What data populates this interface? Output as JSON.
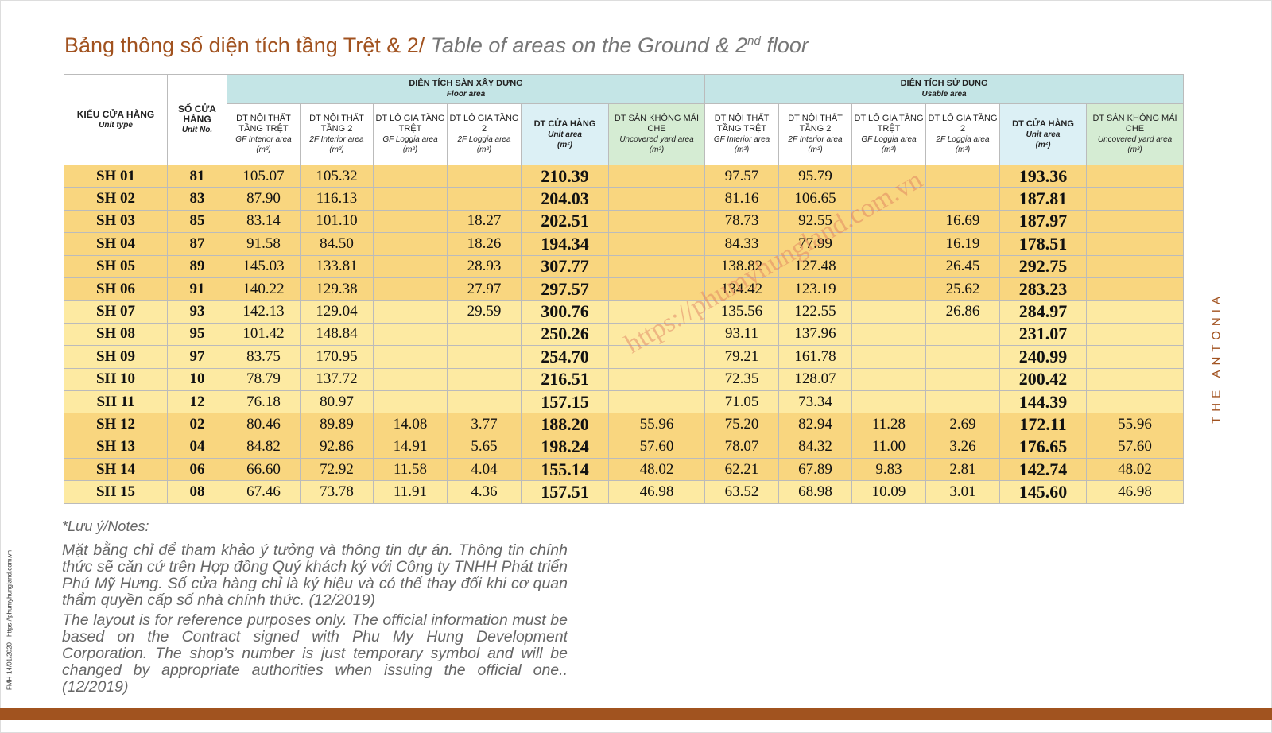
{
  "header": {
    "title_vi": "Bảng thông số diện tích tầng Trệt & 2/",
    "title_en": "Table of areas on the Ground & 2",
    "title_sup": "nd",
    "title_end": "floor"
  },
  "side_text": "THE ANTONIA",
  "footer_code": "FMH-14/01/2020 - https://phumyhungland.com.vn",
  "watermark": "https://phumyhungland.com.vn",
  "table": {
    "unit_type_header": {
      "vi": "KIỂU CỬA HÀNG",
      "en": "Unit type"
    },
    "unit_no_header": {
      "vi": "SỐ CỬA HÀNG",
      "en": "Unit No."
    },
    "groups": [
      {
        "vi": "DIỆN TÍCH SÀN XÂY DỰNG",
        "en": "Floor area"
      },
      {
        "vi": "DIỆN TÍCH SỬ DỤNG",
        "en": "Usable area"
      }
    ],
    "columns": [
      {
        "vi": "DT NỘI THẤT TẦNG TRỆT",
        "en": "GF Interior area",
        "unit": "(m²)"
      },
      {
        "vi": "DT NỘI THẤT TẦNG 2",
        "en": "2F Interior area",
        "unit": "(m²)"
      },
      {
        "vi": "DT LÔ GIA TẦNG TRỆT",
        "en": "GF Loggia area",
        "unit": "(m²)"
      },
      {
        "vi": "DT LÔ GIA TẦNG 2",
        "en": "2F Loggia area",
        "unit": "(m²)"
      },
      {
        "vi": "DT CỬA HÀNG",
        "en": "Unit area",
        "unit": "(m²)"
      },
      {
        "vi": "DT SÂN KHÔNG MÁI CHE",
        "en": "Uncovered yard area",
        "unit": "(m²)"
      },
      {
        "vi": "DT NỘI THẤT TẦNG TRỆT",
        "en": "GF Interior area",
        "unit": "(m²)"
      },
      {
        "vi": "DT NỘI THẤT TẦNG 2",
        "en": "2F Interior area",
        "unit": "(m²)"
      },
      {
        "vi": "DT LÔ GIA TẦNG TRỆT",
        "en": "GF Loggia area",
        "unit": "(m²)"
      },
      {
        "vi": "DT LÔ GIA TẦNG 2",
        "en": "2F Loggia area",
        "unit": "(m²)"
      },
      {
        "vi": "DT CỬA HÀNG",
        "en": "Unit area",
        "unit": "(m²)"
      },
      {
        "vi": "DT SÂN KHÔNG MÁI CHE",
        "en": "Uncovered yard area",
        "unit": "(m²)"
      }
    ],
    "rows": [
      [
        "SH 01",
        "81",
        "105.07",
        "105.32",
        null,
        null,
        "210.39",
        null,
        "97.57",
        "95.79",
        null,
        null,
        "193.36",
        null
      ],
      [
        "SH 02",
        "83",
        "87.90",
        "116.13",
        null,
        null,
        "204.03",
        null,
        "81.16",
        "106.65",
        null,
        null,
        "187.81",
        null
      ],
      [
        "SH 03",
        "85",
        "83.14",
        "101.10",
        null,
        "18.27",
        "202.51",
        null,
        "78.73",
        "92.55",
        null,
        "16.69",
        "187.97",
        null
      ],
      [
        "SH 04",
        "87",
        "91.58",
        "84.50",
        null,
        "18.26",
        "194.34",
        null,
        "84.33",
        "77.99",
        null,
        "16.19",
        "178.51",
        null
      ],
      [
        "SH 05",
        "89",
        "145.03",
        "133.81",
        null,
        "28.93",
        "307.77",
        null,
        "138.82",
        "127.48",
        null,
        "26.45",
        "292.75",
        null
      ],
      [
        "SH 06",
        "91",
        "140.22",
        "129.38",
        null,
        "27.97",
        "297.57",
        null,
        "134.42",
        "123.19",
        null,
        "25.62",
        "283.23",
        null
      ],
      [
        "SH 07",
        "93",
        "142.13",
        "129.04",
        null,
        "29.59",
        "300.76",
        null,
        "135.56",
        "122.55",
        null,
        "26.86",
        "284.97",
        null
      ],
      [
        "SH 08",
        "95",
        "101.42",
        "148.84",
        null,
        null,
        "250.26",
        null,
        "93.11",
        "137.96",
        null,
        null,
        "231.07",
        null
      ],
      [
        "SH 09",
        "97",
        "83.75",
        "170.95",
        null,
        null,
        "254.70",
        null,
        "79.21",
        "161.78",
        null,
        null,
        "240.99",
        null
      ],
      [
        "SH 10",
        "10",
        "78.79",
        "137.72",
        null,
        null,
        "216.51",
        null,
        "72.35",
        "128.07",
        null,
        null,
        "200.42",
        null
      ],
      [
        "SH 11",
        "12",
        "76.18",
        "80.97",
        null,
        null,
        "157.15",
        null,
        "71.05",
        "73.34",
        null,
        null,
        "144.39",
        null
      ],
      [
        "SH 12",
        "02",
        "80.46",
        "89.89",
        "14.08",
        "3.77",
        "188.20",
        "55.96",
        "75.20",
        "82.94",
        "11.28",
        "2.69",
        "172.11",
        "55.96"
      ],
      [
        "SH 13",
        "04",
        "84.82",
        "92.86",
        "14.91",
        "5.65",
        "198.24",
        "57.60",
        "78.07",
        "84.32",
        "11.00",
        "3.26",
        "176.65",
        "57.60"
      ],
      [
        "SH 14",
        "06",
        "66.60",
        "72.92",
        "11.58",
        "4.04",
        "155.14",
        "48.02",
        "62.21",
        "67.89",
        "9.83",
        "2.81",
        "142.74",
        "48.02"
      ],
      [
        "SH 15",
        "08",
        "67.46",
        "73.78",
        "11.91",
        "4.36",
        "157.51",
        "46.98",
        "63.52",
        "68.98",
        "10.09",
        "3.01",
        "145.60",
        "46.98"
      ]
    ]
  },
  "notes": {
    "title": "*Lưu ý/Notes:",
    "vi": "Mặt bằng chỉ để tham khảo ý tưởng và thông tin dự án. Thông tin chính thức sẽ căn cứ trên Hợp đồng Quý khách ký với Công ty TNHH Phát triển Phú Mỹ Hưng. Số cửa hàng chỉ là ký hiệu và có thể thay đổi khi cơ quan thẩm quyền cấp số nhà chính thức. (12/2019)",
    "en": "The layout is for reference purposes only. The official information must be based on the Contract signed with Phu My Hung Development Corporation. The shop’s number is just temporary symbol and will be changed by appropriate authorities when issuing the official one.. (12/2019)"
  }
}
